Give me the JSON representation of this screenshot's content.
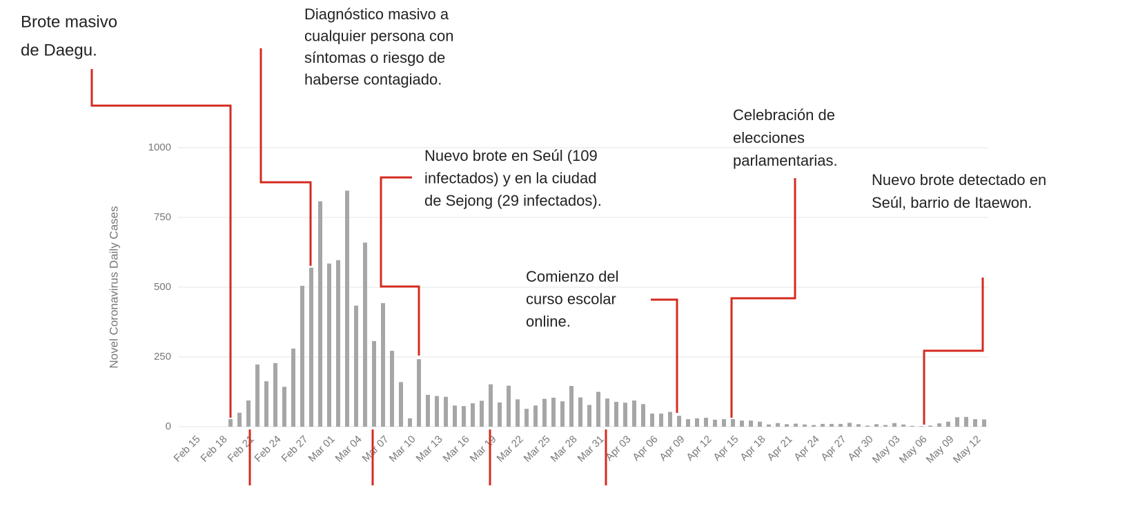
{
  "chart_data": {
    "type": "bar",
    "y_label": "Novel Coronavirus Daily Cases",
    "categories": [
      "Feb 15",
      null,
      null,
      "Feb 18",
      null,
      null,
      "Feb 21",
      null,
      null,
      "Feb 24",
      null,
      null,
      "Feb 27",
      null,
      null,
      "Mar 01",
      null,
      null,
      "Mar 04",
      null,
      null,
      "Mar 07",
      null,
      null,
      "Mar 10",
      null,
      null,
      "Mar 13",
      null,
      null,
      "Mar 16",
      null,
      null,
      "Mar 19",
      null,
      null,
      "Mar 22",
      null,
      null,
      "Mar 25",
      null,
      null,
      "Mar 28",
      null,
      null,
      "Mar 31",
      null,
      null,
      "Apr 03",
      null,
      null,
      "Apr 06",
      null,
      null,
      "Apr 09",
      null,
      null,
      "Apr 12",
      null,
      null,
      "Apr 15",
      null,
      null,
      "Apr 18",
      null,
      null,
      "Apr 21",
      null,
      null,
      "Apr 24",
      null,
      null,
      "Apr 27",
      null,
      null,
      "Apr 30",
      null,
      null,
      "May 03",
      null,
      null,
      "May 06",
      null,
      null,
      "May 09",
      null,
      null,
      "May 12",
      null
    ],
    "values": [
      0,
      0,
      0,
      0,
      27,
      50,
      94,
      223,
      163,
      228,
      143,
      280,
      505,
      570,
      808,
      585,
      597,
      846,
      434,
      660,
      307,
      443,
      272,
      160,
      30,
      242,
      114,
      110,
      107,
      76,
      74,
      84,
      93,
      152,
      87,
      147,
      98,
      64,
      76,
      100,
      104,
      91,
      146,
      105,
      78,
      125,
      101,
      89,
      86,
      94,
      81,
      47,
      47,
      53,
      39,
      27,
      30,
      32,
      25,
      27,
      27,
      22,
      22,
      18,
      8,
      13,
      9,
      11,
      8,
      6,
      10,
      10,
      10,
      14,
      9,
      4,
      9,
      6,
      13,
      8,
      3,
      2,
      4,
      12,
      18,
      34,
      35,
      27,
      26
    ],
    "color": "#a6a6a6",
    "ylim": [
      0,
      1000
    ],
    "yticks": [
      0,
      250,
      500,
      750,
      1000
    ],
    "grid": true,
    "annotations": [
      {
        "lines": [
          "Brote masivo",
          "de Daegu."
        ]
      },
      {
        "lines": [
          "Diagnóstico masivo a",
          "cualquier persona con",
          "síntomas o riesgo de",
          "haberse contagiado."
        ]
      },
      {
        "lines": [
          "Nuevo brote en Seúl (109",
          "infectados) y en la ciudad",
          "de Sejong (29 infectados)."
        ]
      },
      {
        "lines": [
          "Comienzo del",
          "curso escolar",
          "online."
        ]
      },
      {
        "lines": [
          "Celebración de",
          "elecciones",
          "parlamentarias."
        ]
      },
      {
        "lines": [
          "Nuevo brote detectado en",
          "Seúl, barrio de Itaewon."
        ]
      }
    ]
  }
}
